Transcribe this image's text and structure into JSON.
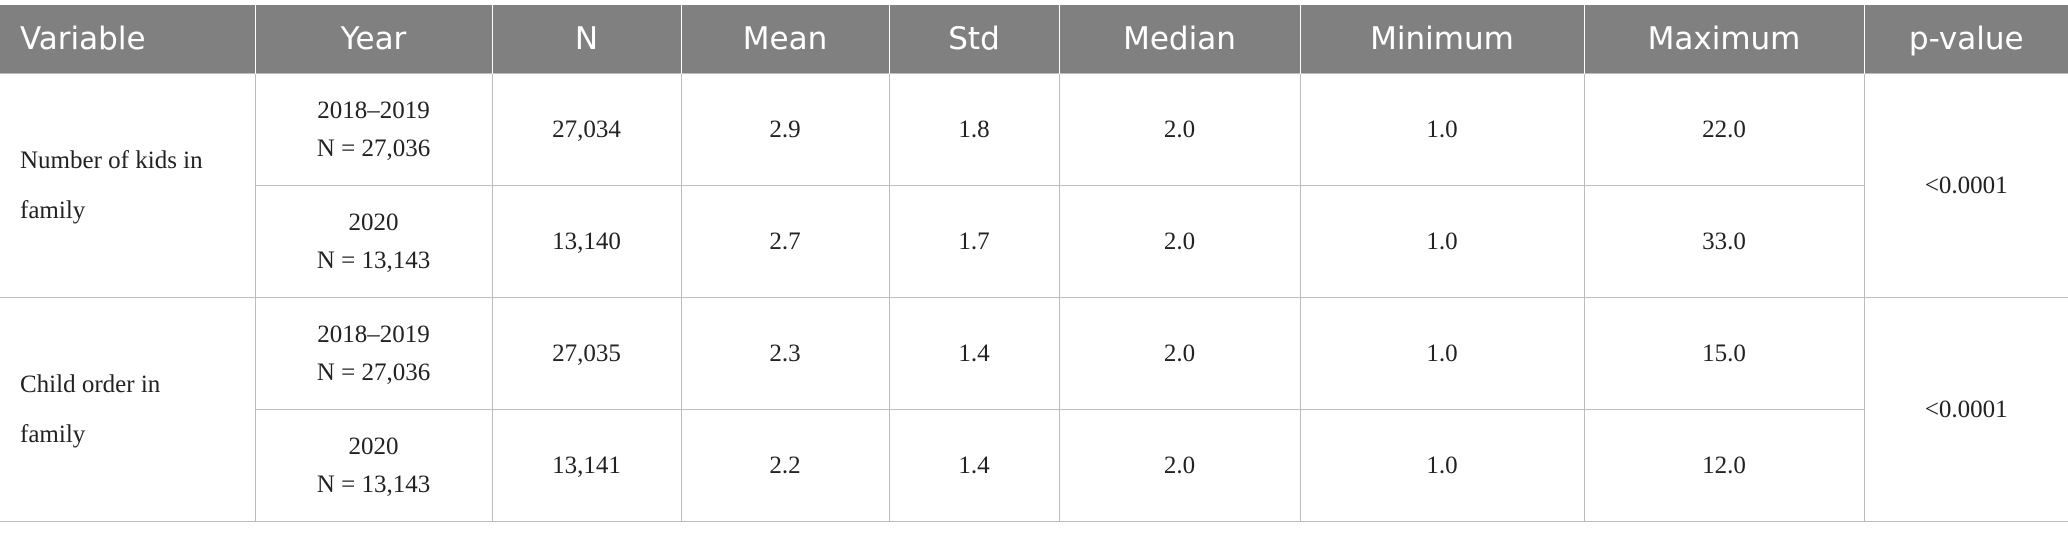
{
  "header": [
    "Variable",
    "Year",
    "N",
    "Mean",
    "Std",
    "Median",
    "Minimum",
    "Maximum",
    "p-value"
  ],
  "groups": [
    {
      "variable": "Number of kids in family",
      "p_value": "<0.0001",
      "rows": [
        {
          "year": "2018–2019",
          "year_n": "N = 27,036",
          "cells": [
            "27,034",
            "2.9",
            "1.8",
            "2.0",
            "1.0",
            "22.0"
          ]
        },
        {
          "year": "2020",
          "year_n": "N = 13,143",
          "cells": [
            "13,140",
            "2.7",
            "1.7",
            "2.0",
            "1.0",
            "33.0"
          ]
        }
      ]
    },
    {
      "variable": "Child order in family",
      "p_value": "<0.0001",
      "rows": [
        {
          "year": "2018–2019",
          "year_n": "N = 27,036",
          "cells": [
            "27,035",
            "2.3",
            "1.4",
            "2.0",
            "1.0",
            "15.0"
          ]
        },
        {
          "year": "2020",
          "year_n": "N = 13,143",
          "cells": [
            "13,141",
            "2.2",
            "1.4",
            "2.0",
            "1.0",
            "12.0"
          ]
        }
      ]
    }
  ]
}
